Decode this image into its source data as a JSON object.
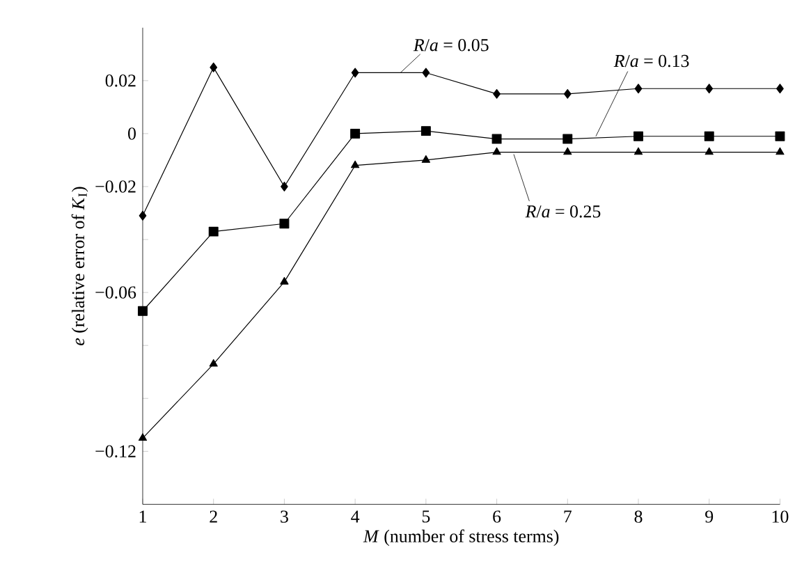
{
  "chart_data": {
    "type": "line",
    "x": [
      1,
      2,
      3,
      4,
      5,
      6,
      7,
      8,
      9,
      10
    ],
    "series": [
      {
        "name": "*R*/*a* = 0.05",
        "color": "#000000",
        "marker": "diamond",
        "values": [
          -0.031,
          0.025,
          -0.02,
          0.023,
          0.023,
          0.015,
          0.015,
          0.017,
          0.017,
          0.017
        ]
      },
      {
        "name": "*R*/*a* = 0.13",
        "color": "#000000",
        "marker": "square",
        "values": [
          -0.067,
          -0.037,
          -0.034,
          0.0,
          0.001,
          -0.002,
          -0.002,
          -0.001,
          -0.001,
          -0.001
        ]
      },
      {
        "name": "*R*/*a* = 0.25",
        "color": "#000000",
        "marker": "triangle",
        "values": [
          -0.115,
          -0.087,
          -0.056,
          -0.012,
          -0.01,
          -0.007,
          -0.007,
          -0.007,
          -0.007,
          -0.007
        ]
      }
    ],
    "xlabel": "*M* (number of stress terms)",
    "ylabel": "*e* (relative error of *K*$_{I}$)",
    "xlim": [
      1,
      10
    ],
    "ylim": [
      -0.14,
      0.04
    ],
    "xticks": [
      1,
      2,
      3,
      4,
      5,
      6,
      7,
      8,
      9,
      10
    ],
    "yticks": [
      {
        "value": 0.02,
        "label": "0.02"
      },
      {
        "value": 0,
        "label": "0"
      },
      {
        "value": -0.02,
        "label": "−0.02"
      },
      {
        "value": -0.04,
        "label": null
      },
      {
        "value": -0.06,
        "label": "−0.06"
      },
      {
        "value": -0.08,
        "label": null
      },
      {
        "value": -0.1,
        "label": null
      },
      {
        "value": -0.12,
        "label": "−0.12"
      }
    ],
    "line_style": "solid"
  }
}
